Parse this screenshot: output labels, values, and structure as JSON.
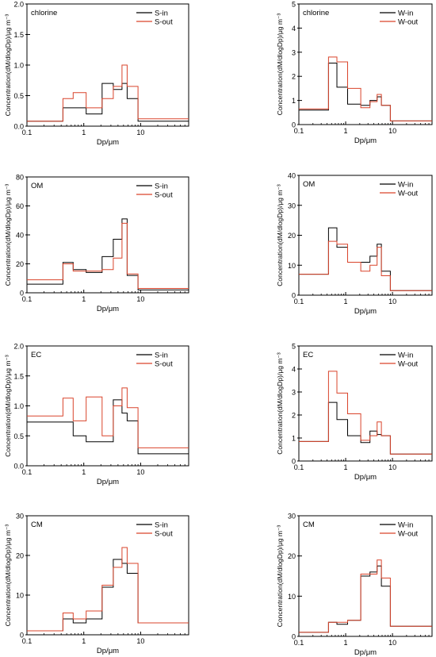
{
  "figure": {
    "xlabel": "Dp/μm",
    "ylabel": "Concentration(dM/dlogDp)/μg m⁻³"
  },
  "chart_data": [
    {
      "type": "line",
      "step": true,
      "label": "chlorine",
      "legend_position": "top-right",
      "xscale": "log",
      "xlim": [
        0.1,
        70
      ],
      "xticks": [
        "0.1",
        "1",
        "10"
      ],
      "ylim": [
        0,
        2.0
      ],
      "yticks": [
        "0.0",
        "0.5",
        "1.0",
        "1.5",
        "2.0"
      ],
      "bin_edges": [
        0.1,
        0.43,
        0.65,
        1.1,
        2.1,
        3.3,
        4.7,
        5.8,
        9,
        70
      ],
      "series": [
        {
          "name": "S-in",
          "color": "#000000",
          "values": [
            0.08,
            0.3,
            0.3,
            0.2,
            0.7,
            0.6,
            0.7,
            0.45,
            0.08
          ]
        },
        {
          "name": "S-out",
          "color": "#d9442b",
          "values": [
            0.08,
            0.45,
            0.55,
            0.3,
            0.45,
            0.65,
            1.0,
            0.65,
            0.12
          ]
        }
      ]
    },
    {
      "type": "line",
      "step": true,
      "label": "chlorine",
      "legend_position": "top-right",
      "xscale": "log",
      "xlim": [
        0.1,
        70
      ],
      "xticks": [
        "0.1",
        "1",
        "10"
      ],
      "ylim": [
        0,
        5
      ],
      "yticks": [
        "0",
        "1",
        "2",
        "3",
        "4",
        "5"
      ],
      "bin_edges": [
        0.1,
        0.43,
        0.65,
        1.1,
        2.1,
        3.3,
        4.7,
        5.8,
        9,
        70
      ],
      "series": [
        {
          "name": "W-in",
          "color": "#000000",
          "values": [
            0.6,
            2.55,
            1.55,
            0.85,
            0.8,
            1.0,
            1.15,
            0.8,
            0.15
          ]
        },
        {
          "name": "W-out",
          "color": "#d9442b",
          "values": [
            0.65,
            2.8,
            2.6,
            1.5,
            0.7,
            0.95,
            1.25,
            0.8,
            0.15
          ]
        }
      ]
    },
    {
      "type": "line",
      "step": true,
      "label": "OM",
      "legend_position": "top-right",
      "xscale": "log",
      "xlim": [
        0.1,
        70
      ],
      "xticks": [
        "0.1",
        "1",
        "10"
      ],
      "ylim": [
        0,
        80
      ],
      "yticks": [
        "0",
        "20",
        "40",
        "60",
        "80"
      ],
      "bin_edges": [
        0.1,
        0.43,
        0.65,
        1.1,
        2.1,
        3.3,
        4.7,
        5.8,
        9,
        70
      ],
      "series": [
        {
          "name": "S-in",
          "color": "#000000",
          "values": [
            6,
            21,
            16,
            14,
            25,
            37,
            51,
            12,
            2
          ]
        },
        {
          "name": "S-out",
          "color": "#d9442b",
          "values": [
            9,
            20,
            15,
            15,
            16,
            24,
            48,
            13,
            3
          ]
        }
      ]
    },
    {
      "type": "line",
      "step": true,
      "label": "OM",
      "legend_position": "top-right",
      "xscale": "log",
      "xlim": [
        0.1,
        70
      ],
      "xticks": [
        "0.1",
        "1",
        "10"
      ],
      "ylim": [
        0,
        40
      ],
      "yticks": [
        "0",
        "10",
        "20",
        "30",
        "40"
      ],
      "bin_edges": [
        0.1,
        0.43,
        0.65,
        1.1,
        2.1,
        3.3,
        4.7,
        5.8,
        9,
        70
      ],
      "series": [
        {
          "name": "W-in",
          "color": "#000000",
          "values": [
            7,
            22.5,
            16,
            11,
            11,
            13,
            17,
            8,
            1.5
          ]
        },
        {
          "name": "W-out",
          "color": "#d9442b",
          "values": [
            7,
            18,
            17,
            11,
            8,
            10,
            16,
            6.5,
            1.5
          ]
        }
      ]
    },
    {
      "type": "line",
      "step": true,
      "label": "EC",
      "legend_position": "top-right",
      "xscale": "log",
      "xlim": [
        0.1,
        70
      ],
      "xticks": [
        "0.1",
        "1",
        "10"
      ],
      "ylim": [
        0,
        2.0
      ],
      "yticks": [
        "0.0",
        "0.5",
        "1.0",
        "1.5",
        "2.0"
      ],
      "bin_edges": [
        0.1,
        0.43,
        0.65,
        1.1,
        2.1,
        3.3,
        4.7,
        5.8,
        9,
        70
      ],
      "series": [
        {
          "name": "S-in",
          "color": "#000000",
          "values": [
            0.73,
            0.73,
            0.5,
            0.4,
            0.4,
            1.1,
            0.88,
            0.75,
            0.2
          ]
        },
        {
          "name": "S-out",
          "color": "#d9442b",
          "values": [
            0.83,
            1.13,
            0.75,
            1.15,
            0.5,
            1.0,
            1.3,
            0.97,
            0.3
          ]
        }
      ]
    },
    {
      "type": "line",
      "step": true,
      "label": "EC",
      "legend_position": "top-right",
      "xscale": "log",
      "xlim": [
        0.1,
        70
      ],
      "xticks": [
        "0.1",
        "1",
        "10"
      ],
      "ylim": [
        0,
        5
      ],
      "yticks": [
        "0",
        "1",
        "2",
        "3",
        "4",
        "5"
      ],
      "bin_edges": [
        0.1,
        0.43,
        0.65,
        1.1,
        2.1,
        3.3,
        4.7,
        5.8,
        9,
        70
      ],
      "series": [
        {
          "name": "W-in",
          "color": "#000000",
          "values": [
            0.85,
            2.55,
            1.8,
            1.1,
            0.8,
            1.3,
            1.15,
            1.1,
            0.3
          ]
        },
        {
          "name": "W-out",
          "color": "#d9442b",
          "values": [
            0.85,
            3.9,
            2.95,
            2.05,
            0.9,
            1.1,
            1.7,
            1.1,
            0.3
          ]
        }
      ]
    },
    {
      "type": "line",
      "step": true,
      "label": "CM",
      "legend_position": "top-right",
      "xscale": "log",
      "xlim": [
        0.1,
        70
      ],
      "xticks": [
        "0.1",
        "1",
        "10"
      ],
      "ylim": [
        0,
        30
      ],
      "yticks": [
        "0",
        "10",
        "20",
        "30"
      ],
      "bin_edges": [
        0.1,
        0.43,
        0.65,
        1.1,
        2.1,
        3.3,
        4.7,
        5.8,
        9,
        70
      ],
      "series": [
        {
          "name": "S-in",
          "color": "#000000",
          "values": [
            1,
            4,
            3,
            4,
            12,
            19,
            18,
            15.5,
            3
          ]
        },
        {
          "name": "S-out",
          "color": "#d9442b",
          "values": [
            1,
            5.5,
            4,
            6,
            12.5,
            17,
            22,
            18,
            3
          ]
        }
      ]
    },
    {
      "type": "line",
      "step": true,
      "label": "CM",
      "legend_position": "top-right",
      "xscale": "log",
      "xlim": [
        0.1,
        70
      ],
      "xticks": [
        "0.1",
        "1",
        "10"
      ],
      "ylim": [
        0,
        30
      ],
      "yticks": [
        "0",
        "10",
        "20",
        "30"
      ],
      "bin_edges": [
        0.1,
        0.43,
        0.65,
        1.1,
        2.1,
        3.3,
        4.7,
        5.8,
        9,
        70
      ],
      "series": [
        {
          "name": "W-in",
          "color": "#000000",
          "values": [
            1,
            3.5,
            3,
            4,
            15,
            16,
            17.5,
            12.5,
            2.5
          ]
        },
        {
          "name": "W-out",
          "color": "#d9442b",
          "values": [
            1,
            3.5,
            3.5,
            4,
            15.5,
            15.5,
            19,
            14.5,
            2.5
          ]
        }
      ]
    }
  ]
}
